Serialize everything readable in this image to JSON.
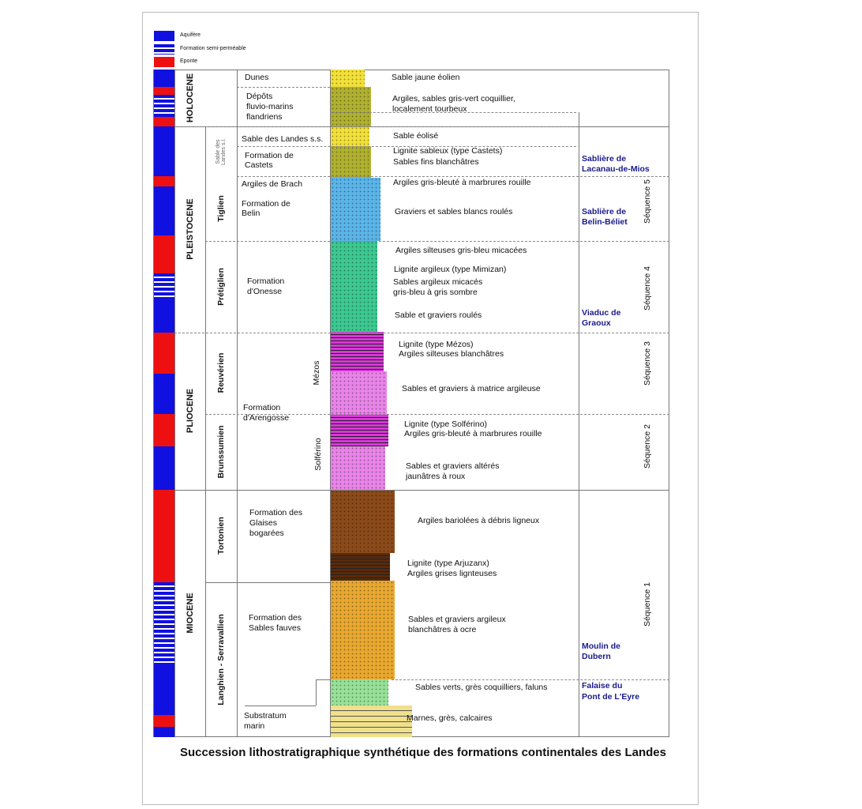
{
  "legend": [
    {
      "label": "Aquifère",
      "color": "#1010e0"
    },
    {
      "label": "Formation semi-perméable",
      "color": "striped"
    },
    {
      "label": "Eponte",
      "color": "#ee1010"
    }
  ],
  "epochs": [
    "HOLOCENE",
    "PLEISTOCENE",
    "PLIOCENE",
    "MIOCENE"
  ],
  "stages": [
    "Sable des Landes s.l.",
    "Tiglien",
    "Prétiglien",
    "Reuvérien",
    "Brunssumien",
    "Tortonien",
    "Langhien - Serravallien"
  ],
  "formations": [
    "Dunes",
    "Dépôts",
    "fluvio-marins",
    "flandriens",
    "Sable des Landes s.s.",
    "Formation de",
    "Castets",
    "Argiles de Brach",
    "Formation de",
    "Belin",
    "Formation",
    "d'Onesse",
    "Formation",
    "d'Arengosse",
    "Formation des",
    "Glaises",
    "bogarées",
    "Formation des",
    "Sables fauves",
    "Substratum",
    "marin"
  ],
  "lignite_types": [
    "Mézos",
    "Solférino"
  ],
  "descriptions": [
    "Sable jaune éolien",
    "Argiles, sables gris-vert coquillier,",
    "localement tourbeux",
    "Sable éolisé",
    "Lignite sableux (type Castets)",
    "Sables fins blanchâtres",
    "Argiles gris-bleuté à marbrures rouille",
    "Graviers et sables blancs roulés",
    "Argiles silteuses gris-bleu micacées",
    "Lignite argileux (type Mimizan)",
    "Sables argileux micacés",
    "gris-bleu à gris sombre",
    "Sable et graviers roulés",
    "Lignite (type Mézos)",
    "Argiles silteuses blanchâtres",
    "Sables et graviers à matrice argileuse",
    "Lignite  (type Solférino)",
    "Argiles gris-bleuté à marbrures rouille",
    "Sables et graviers altérés",
    "jaunâtres à roux",
    "Argiles bariolées à débris ligneux",
    "Lignite (type Arjuzanx)",
    "Argiles grises lignteuses",
    "Sables et graviers argileux",
    "blanchâtres à ocre",
    "Sables verts, grès coquilliers, faluns",
    "Marnes, grès, calcaires"
  ],
  "sites": [
    "Sablière de",
    "Lacanau-de-Mios",
    "Sablière de",
    "Belin-Béliet",
    "Viaduc de",
    "Graoux",
    "Moulin de",
    "Dubern",
    "Falaise du",
    "Pont de L'Eyre"
  ],
  "sequences": [
    "Séquence 5",
    "Séquence 4",
    "Séquence 3",
    "Séquence 2",
    "Séquence 1"
  ],
  "hydro_colors": {
    "aquifer": "#1010e0",
    "aquitard": "#ee1010"
  },
  "lithology_colors": [
    "#f2e03a",
    "#b0b030",
    "#f2e03a",
    "#b0b030",
    "#5ab4e8",
    "#3cc890",
    "#d838d8",
    "#e884e8",
    "#d838d8",
    "#e884e8",
    "#8b4a1a",
    "#5a2a0a",
    "#e8a830",
    "#98e098",
    "#f0e08a"
  ],
  "title": "Succession lithostratigraphique synthétique des formations continentales des Landes"
}
